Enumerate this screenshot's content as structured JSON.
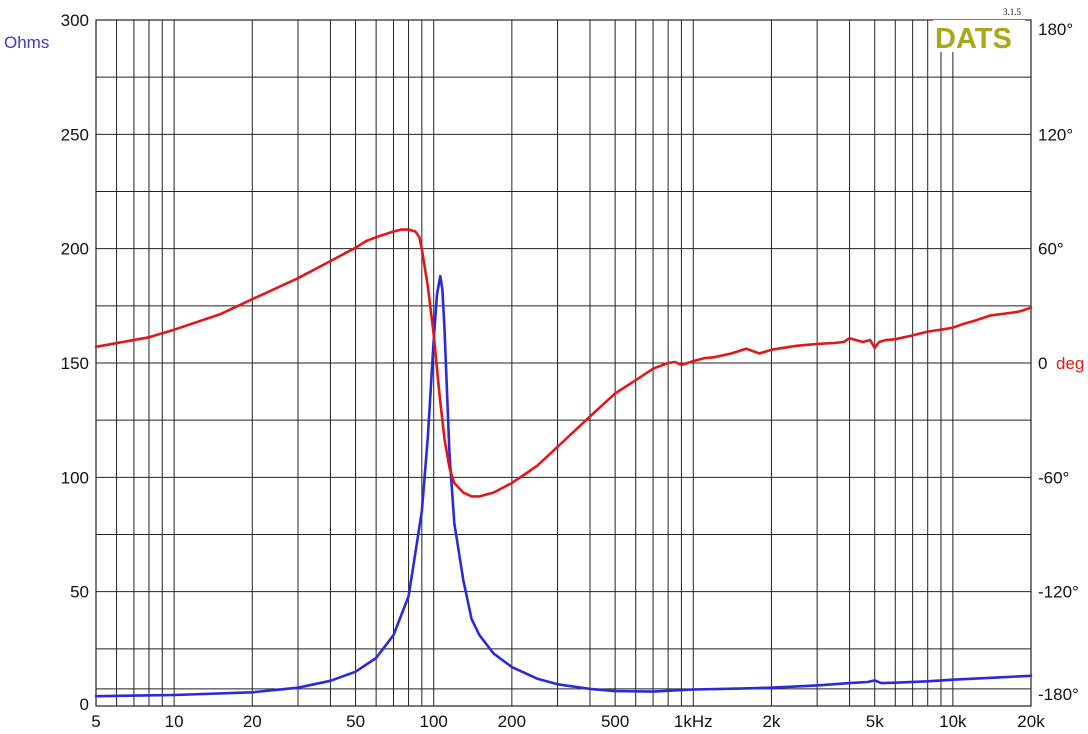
{
  "chart_data": {
    "type": "line",
    "x_scale": "log",
    "xlim": [
      5,
      20000
    ],
    "ylim_left": [
      0,
      300
    ],
    "ylim_right": [
      -180,
      180
    ],
    "grid": true,
    "x_tick_values": [
      5,
      10,
      20,
      50,
      100,
      200,
      500,
      1000,
      2000,
      5000,
      10000,
      20000
    ],
    "x_tick_labels": [
      "5",
      "10",
      "20",
      "50",
      "100",
      "200",
      "500",
      "1kHz",
      "2k",
      "5k",
      "10k",
      "20k"
    ],
    "y_left_tick_values": [
      0,
      50,
      100,
      150,
      200,
      250,
      300
    ],
    "y_left_tick_labels": [
      "0",
      "50",
      "100",
      "150",
      "200",
      "250",
      "300"
    ],
    "y_right_tick_values": [
      -180,
      -120,
      -60,
      0,
      60,
      120,
      180
    ],
    "y_right_tick_labels": [
      "-180°",
      "-120°",
      "-60°",
      "0",
      "60°",
      "120°",
      "180°"
    ],
    "y_left_unit": "Ohms",
    "y_right_unit": "deg",
    "logo_text": "DATS",
    "version_text": "3.1.5",
    "colors": {
      "impedance": "#2a2adc",
      "phase": "#e01818",
      "left_unit": "#3a3ad0",
      "right_unit": "#e01818",
      "logo": "#a8a818",
      "grid": "#222222"
    },
    "series": [
      {
        "key": "impedance",
        "axis": "left",
        "x": [
          5,
          10,
          20,
          30,
          40,
          50,
          60,
          70,
          80,
          90,
          95,
          100,
          103,
          106,
          108,
          110,
          115,
          120,
          130,
          140,
          150,
          170,
          200,
          250,
          300,
          400,
          500,
          700,
          1000,
          1500,
          2000,
          3000,
          4000,
          4700,
          5000,
          5300,
          6000,
          8000,
          10000,
          15000,
          20000
        ],
        "y": [
          4.3,
          4.8,
          6.0,
          8.0,
          11.0,
          15.0,
          21.0,
          31.0,
          48.0,
          85.0,
          118.0,
          160.0,
          180.0,
          188.0,
          182.0,
          165.0,
          110.0,
          80.0,
          55.0,
          38.0,
          31.0,
          23.0,
          17.0,
          12.0,
          9.5,
          7.5,
          6.5,
          6.3,
          7.2,
          7.6,
          8.0,
          9.0,
          10.0,
          10.5,
          11.2,
          10.0,
          10.2,
          10.8,
          11.5,
          12.5,
          13.2
        ]
      },
      {
        "key": "phase",
        "axis": "right",
        "x": [
          5,
          8,
          10,
          15,
          20,
          30,
          40,
          50,
          55,
          60,
          70,
          75,
          80,
          85,
          88,
          90,
          95,
          100,
          105,
          110,
          115,
          120,
          130,
          140,
          150,
          170,
          200,
          250,
          300,
          400,
          500,
          600,
          700,
          800,
          850,
          900,
          950,
          1000,
          1100,
          1200,
          1400,
          1600,
          1800,
          2000,
          2500,
          3000,
          3500,
          3800,
          4000,
          4500,
          4800,
          5000,
          5200,
          5500,
          6000,
          7000,
          8000,
          9000,
          10000,
          11000,
          12000,
          14000,
          16000,
          18000,
          20000
        ],
        "y": [
          8.5,
          13.5,
          17.5,
          25.5,
          33.5,
          44.5,
          53.5,
          60.5,
          64,
          66,
          69,
          70,
          70,
          69,
          66,
          60,
          40,
          15,
          -15,
          -40,
          -55,
          -63,
          -68,
          -70,
          -70,
          -68,
          -63,
          -54,
          -44,
          -28,
          -16,
          -9,
          -3,
          0,
          0.5,
          -1,
          0,
          1,
          2.5,
          3,
          5,
          7.5,
          5,
          7,
          9,
          10,
          10.5,
          11,
          13,
          11,
          12,
          8,
          11,
          12,
          12.5,
          14.5,
          16.5,
          17.5,
          18.5,
          20.5,
          22,
          25,
          26,
          27,
          29
        ]
      }
    ]
  }
}
